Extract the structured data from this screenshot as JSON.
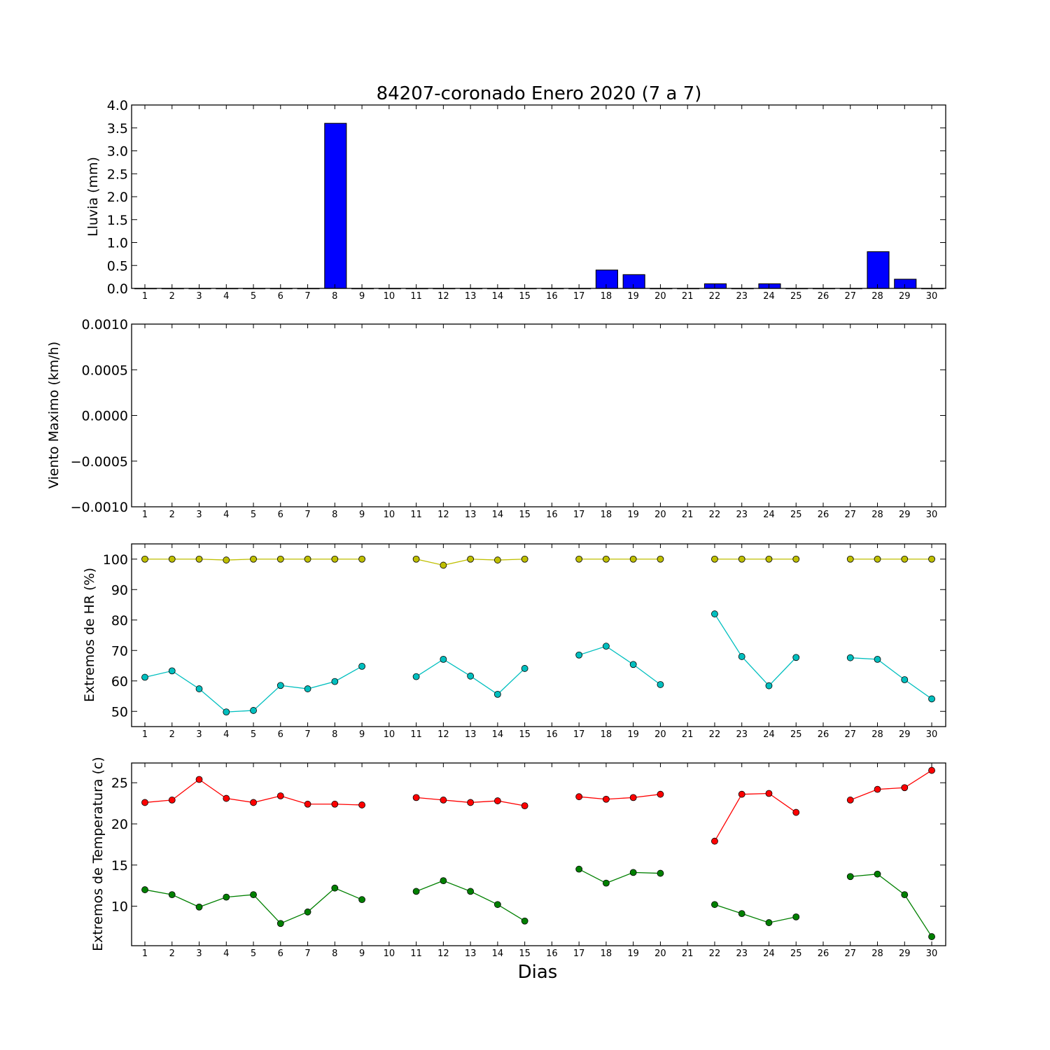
{
  "figure": {
    "title": "84207-coronado Enero 2020  (7 a 7)",
    "xlabel": "Dias"
  },
  "colors": {
    "rain_bar": "#0000ff",
    "hr_max": "#bfbf00",
    "hr_min": "#00bfbf",
    "temp_max": "#ff0000",
    "temp_min": "#008000"
  },
  "chart_data": [
    {
      "type": "bar",
      "ylabel": "Lluvia (mm)",
      "ylim": [
        0,
        4
      ],
      "yticks": [
        "0.0",
        "0.5",
        "1.0",
        "1.5",
        "2.0",
        "2.5",
        "3.0",
        "3.5",
        "4.0"
      ],
      "categories": [
        1,
        2,
        3,
        4,
        5,
        6,
        7,
        8,
        9,
        10,
        11,
        12,
        13,
        14,
        15,
        16,
        17,
        18,
        19,
        20,
        21,
        22,
        23,
        24,
        25,
        26,
        27,
        28,
        29,
        30
      ],
      "values": [
        0,
        0,
        0,
        0,
        0,
        0,
        0,
        3.6,
        0,
        0,
        0,
        0,
        0,
        0,
        0,
        0,
        0,
        0.4,
        0.3,
        0,
        0,
        0.1,
        0,
        0.1,
        0,
        0,
        0,
        0.8,
        0.2,
        0
      ]
    },
    {
      "type": "line",
      "ylabel": "Viento Maximo (km/h)",
      "ylim": [
        -0.001,
        0.001
      ],
      "yticks": [
        "−0.0010",
        "−0.0005",
        "0.0000",
        "0.0005",
        "0.0010"
      ],
      "categories": [
        1,
        2,
        3,
        4,
        5,
        6,
        7,
        8,
        9,
        10,
        11,
        12,
        13,
        14,
        15,
        16,
        17,
        18,
        19,
        20,
        21,
        22,
        23,
        24,
        25,
        26,
        27,
        28,
        29,
        30
      ],
      "series": []
    },
    {
      "type": "line",
      "ylabel": "Extremos de HR (%)",
      "ylim": [
        45,
        105
      ],
      "yticks": [
        "50",
        "60",
        "70",
        "80",
        "90",
        "100"
      ],
      "categories": [
        1,
        2,
        3,
        4,
        5,
        6,
        7,
        8,
        9,
        10,
        11,
        12,
        13,
        14,
        15,
        16,
        17,
        18,
        19,
        20,
        21,
        22,
        23,
        24,
        25,
        26,
        27,
        28,
        29,
        30
      ],
      "series": [
        {
          "color_key": "hr_max",
          "values": [
            100,
            100,
            100,
            99.7,
            100,
            100,
            100,
            100,
            100,
            null,
            100,
            98,
            100,
            99.7,
            100,
            null,
            100,
            100,
            100,
            100,
            null,
            100,
            100,
            100,
            100,
            null,
            100,
            100,
            100,
            100
          ]
        },
        {
          "color_key": "hr_min",
          "values": [
            61.2,
            63.3,
            57.4,
            49.8,
            50.3,
            58.5,
            57.4,
            59.8,
            64.8,
            null,
            61.4,
            67.1,
            61.6,
            55.6,
            64.1,
            null,
            68.5,
            71.4,
            65.4,
            58.8,
            null,
            82.0,
            68.0,
            58.4,
            67.7,
            null,
            67.6,
            67.1,
            60.4,
            54.1
          ]
        }
      ]
    },
    {
      "type": "line",
      "ylabel": "Extremos de Temperatura (c)",
      "ylim": [
        5.2,
        27.4
      ],
      "yticks": [
        "10",
        "15",
        "20",
        "25"
      ],
      "categories": [
        1,
        2,
        3,
        4,
        5,
        6,
        7,
        8,
        9,
        10,
        11,
        12,
        13,
        14,
        15,
        16,
        17,
        18,
        19,
        20,
        21,
        22,
        23,
        24,
        25,
        26,
        27,
        28,
        29,
        30
      ],
      "series": [
        {
          "color_key": "temp_max",
          "values": [
            22.6,
            22.9,
            25.4,
            23.1,
            22.6,
            23.4,
            22.4,
            22.4,
            22.3,
            null,
            23.2,
            22.9,
            22.6,
            22.8,
            22.2,
            null,
            23.3,
            23.0,
            23.2,
            23.6,
            null,
            17.9,
            23.6,
            23.7,
            21.4,
            null,
            22.9,
            24.2,
            24.4,
            26.5
          ]
        },
        {
          "color_key": "temp_min",
          "values": [
            12.0,
            11.4,
            9.9,
            11.1,
            11.4,
            7.9,
            9.3,
            12.2,
            10.8,
            null,
            11.8,
            13.1,
            11.8,
            10.2,
            8.2,
            null,
            14.5,
            12.8,
            14.1,
            14.0,
            null,
            10.2,
            9.1,
            8.0,
            8.7,
            null,
            13.6,
            13.9,
            11.4,
            6.3
          ]
        }
      ]
    }
  ]
}
